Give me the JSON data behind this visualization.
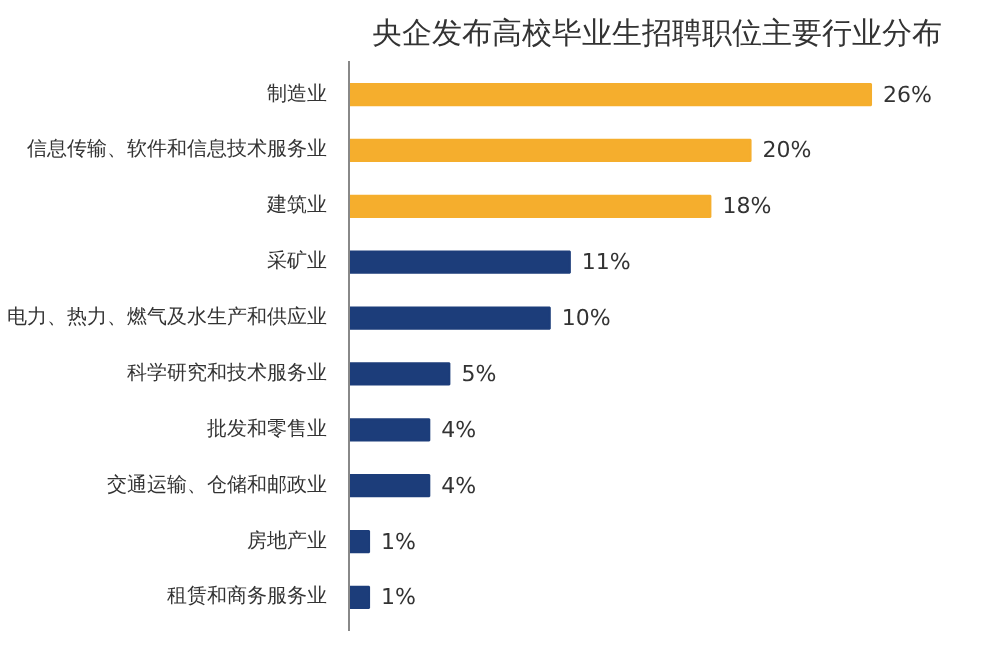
{
  "chart_data": {
    "type": "bar",
    "orientation": "horizontal",
    "title": "央企发布高校毕业生招聘职位主要行业分布",
    "categories": [
      "制造业",
      "信息传输、软件和信息技术服务业",
      "建筑业",
      "采矿业",
      "电力、热力、燃气及水生产和供应业",
      "科学研究和技术服务业",
      "批发和零售业",
      "交通运输、仓储和邮政业",
      "房地产业",
      "租赁和商务服务业"
    ],
    "values": [
      26,
      20,
      18,
      11,
      10,
      5,
      4,
      4,
      1,
      1
    ],
    "value_labels": [
      "26%",
      "20%",
      "18%",
      "11%",
      "10%",
      "5%",
      "4%",
      "4%",
      "1%",
      "1%"
    ],
    "colors": [
      "#f5ae2d",
      "#f5ae2d",
      "#f5ae2d",
      "#1c3d7a",
      "#1c3d7a",
      "#1c3d7a",
      "#1c3d7a",
      "#1c3d7a",
      "#1c3d7a",
      "#1c3d7a"
    ],
    "grid": false
  }
}
